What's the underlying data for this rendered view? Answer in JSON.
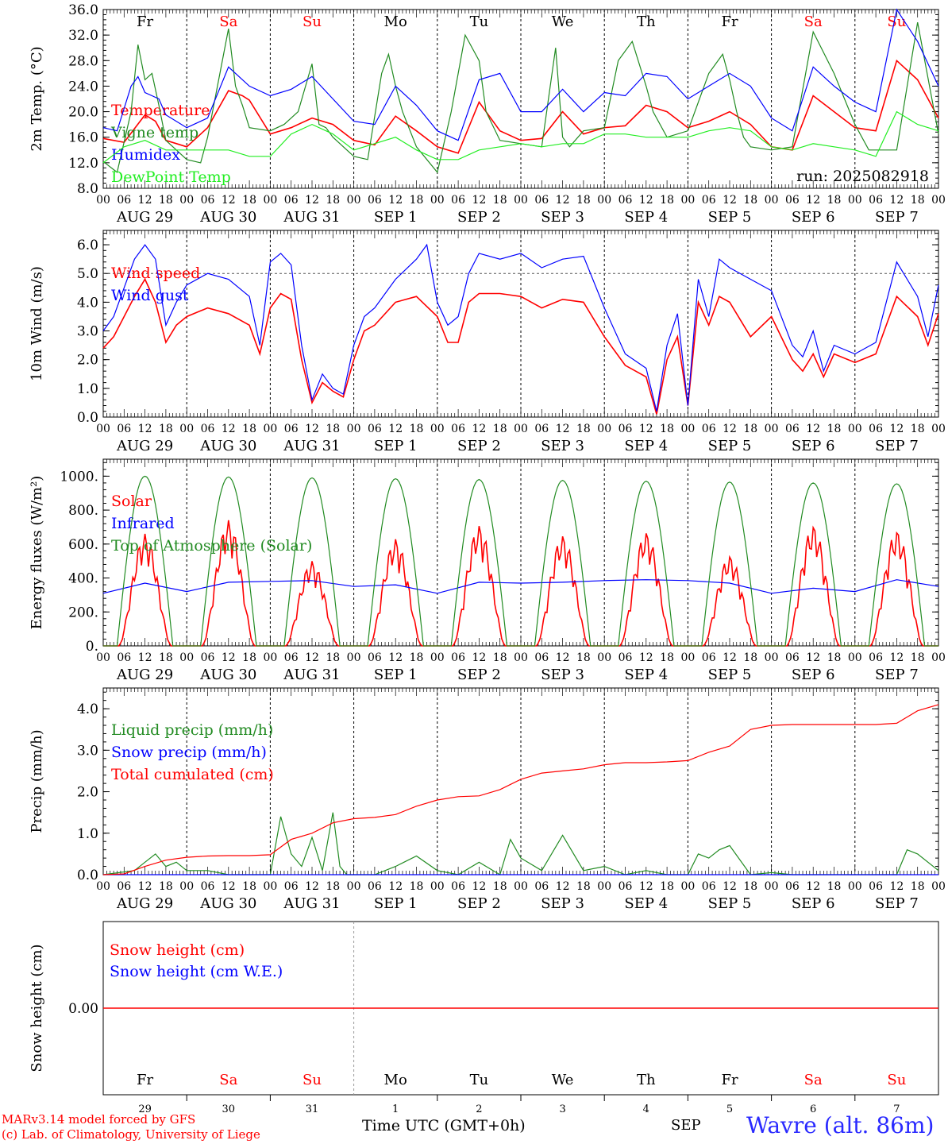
{
  "footer": {
    "credit_line1": "MARv3.14 model forced by GFS",
    "credit_line2": "(c) Lab. of Climatology, University of Liege",
    "xaxis_label": "Time UTC (GMT+0h)",
    "month_label": "SEP",
    "station": "Wavre (alt. 86m)"
  },
  "colors": {
    "red": "#ff0000",
    "green": "#228b22",
    "blue": "#0000ff",
    "lime": "#22ee22",
    "weekend": "#ff0000"
  },
  "days": [
    {
      "weekday": "Fr",
      "date": "AUG 29",
      "num": "29",
      "weekend": false
    },
    {
      "weekday": "Sa",
      "date": "AUG 30",
      "num": "30",
      "weekend": true
    },
    {
      "weekday": "Su",
      "date": "AUG 31",
      "num": "31",
      "weekend": true
    },
    {
      "weekday": "Mo",
      "date": "SEP  1",
      "num": "1",
      "weekend": false
    },
    {
      "weekday": "Tu",
      "date": "SEP  2",
      "num": "2",
      "weekend": false
    },
    {
      "weekday": "We",
      "date": "SEP  3",
      "num": "3",
      "weekend": false
    },
    {
      "weekday": "Th",
      "date": "SEP  4",
      "num": "4",
      "weekend": false
    },
    {
      "weekday": "Fr",
      "date": "SEP  5",
      "num": "5",
      "weekend": false
    },
    {
      "weekday": "Sa",
      "date": "SEP  6",
      "num": "6",
      "weekend": true
    },
    {
      "weekday": "Su",
      "date": "SEP  7",
      "num": "7",
      "weekend": true
    }
  ],
  "hour_labels": [
    "00",
    "06",
    "12",
    "18"
  ],
  "chart_data": [
    {
      "type": "line",
      "ylabel": "2m Temp. (°C)",
      "ylim": [
        8,
        36
      ],
      "yticks": [
        "8.0",
        "12.0",
        "16.0",
        "20.0",
        "24.0",
        "28.0",
        "32.0",
        "36.0"
      ],
      "x_unit": "hours since AUG 29 00 UTC",
      "annotation": "run: 2025082918",
      "show_weekdays": true,
      "series": [
        {
          "name": "Temperature",
          "color": "red",
          "x": [
            0,
            6,
            12,
            15,
            18,
            24,
            30,
            36,
            40,
            42,
            48,
            54,
            60,
            66,
            72,
            78,
            84,
            90,
            96,
            102,
            108,
            114,
            120,
            126,
            132,
            138,
            144,
            150,
            156,
            162,
            168,
            174,
            180,
            186,
            192,
            198,
            204,
            210,
            216,
            222,
            228,
            234,
            240
          ],
          "y": [
            15.8,
            15.2,
            19.5,
            18.5,
            15.5,
            14.5,
            17.5,
            23.3,
            22.5,
            21.8,
            16.5,
            17.5,
            19,
            18,
            15.5,
            14.8,
            19.3,
            17,
            14.5,
            13.5,
            21.5,
            17,
            15.5,
            15.8,
            20,
            16.5,
            17.5,
            17.8,
            21,
            20,
            17.5,
            18.5,
            20,
            18,
            14.5,
            14,
            22.5,
            20,
            17.5,
            17,
            28,
            25,
            19
          ]
        },
        {
          "name": "Vigne temp",
          "color": "green",
          "x": [
            0,
            4,
            8,
            10,
            12,
            14,
            16,
            18,
            24,
            28,
            30,
            36,
            38,
            40,
            42,
            48,
            52,
            56,
            60,
            62,
            64,
            66,
            72,
            76,
            80,
            82,
            84,
            86,
            90,
            96,
            100,
            104,
            108,
            110,
            114,
            120,
            126,
            130,
            132,
            134,
            138,
            144,
            148,
            152,
            156,
            158,
            162,
            168,
            174,
            178,
            180,
            182,
            184,
            186,
            192,
            198,
            204,
            210,
            216,
            220,
            228,
            234,
            240
          ],
          "y": [
            12.2,
            10.5,
            20,
            30.5,
            25,
            26,
            21,
            15.5,
            12.5,
            12,
            16,
            33,
            24,
            21,
            17.5,
            17,
            18,
            20,
            27.5,
            18,
            17.5,
            16,
            13,
            12.5,
            26,
            29,
            24,
            20,
            14.5,
            10.5,
            20,
            32,
            28,
            20,
            15.5,
            15,
            14.5,
            30,
            16,
            14.5,
            17,
            17.5,
            28,
            31,
            24,
            20,
            16,
            17,
            26,
            29,
            25,
            20,
            16,
            14.5,
            14,
            14.5,
            32.5,
            26,
            18,
            14,
            14,
            34,
            16.5
          ]
        },
        {
          "name": "Humidex",
          "color": "blue",
          "x": [
            0,
            4,
            8,
            10,
            12,
            14,
            16,
            18,
            24,
            30,
            36,
            42,
            48,
            54,
            60,
            66,
            72,
            78,
            84,
            90,
            96,
            102,
            108,
            114,
            120,
            126,
            132,
            138,
            144,
            150,
            156,
            162,
            168,
            174,
            180,
            186,
            192,
            198,
            204,
            210,
            216,
            222,
            228,
            234,
            240
          ],
          "y": [
            17.5,
            17,
            24,
            25.5,
            23,
            22.5,
            22,
            19.5,
            17.5,
            19,
            27,
            24,
            22.5,
            23.5,
            25.5,
            22,
            18.5,
            18,
            24,
            21,
            17,
            15.5,
            25,
            26,
            20,
            20,
            23.5,
            20,
            23,
            22.5,
            26,
            25.5,
            22,
            24,
            26,
            24,
            19,
            17,
            27,
            24,
            21.5,
            20,
            36,
            31,
            24
          ]
        },
        {
          "name": "DewPoint Temp",
          "color": "lime",
          "x": [
            0,
            6,
            12,
            18,
            24,
            30,
            36,
            42,
            48,
            54,
            60,
            66,
            72,
            78,
            84,
            90,
            96,
            102,
            108,
            114,
            120,
            126,
            132,
            138,
            144,
            150,
            156,
            162,
            168,
            174,
            180,
            186,
            192,
            198,
            204,
            210,
            216,
            222,
            228,
            234,
            240
          ],
          "y": [
            12,
            14.5,
            15.5,
            14,
            14,
            14,
            14,
            13,
            13,
            16.5,
            18,
            16.5,
            14,
            15,
            16,
            14,
            12.5,
            12.5,
            14,
            14.5,
            15,
            14.5,
            15,
            15,
            16.5,
            16.5,
            16,
            16,
            16,
            17,
            17.5,
            17,
            14.5,
            14,
            15,
            14.5,
            14,
            13,
            20,
            18,
            17
          ]
        }
      ]
    },
    {
      "type": "line",
      "ylabel": "10m Wind (m/s)",
      "ylim": [
        0,
        6.5
      ],
      "yticks": [
        "0.0",
        "1.0",
        "2.0",
        "3.0",
        "4.0",
        "5.0",
        "6.0"
      ],
      "reference_line": 5.0,
      "x_unit": "hours since AUG 29 00 UTC",
      "show_weekdays": false,
      "series": [
        {
          "name": "Wind speed",
          "color": "red",
          "x": [
            0,
            3,
            6,
            9,
            12,
            15,
            18,
            21,
            24,
            30,
            36,
            42,
            45,
            48,
            51,
            54,
            57,
            60,
            63,
            66,
            69,
            72,
            75,
            78,
            84,
            90,
            96,
            99,
            102,
            105,
            108,
            114,
            120,
            126,
            132,
            138,
            144,
            150,
            156,
            159,
            162,
            165,
            168,
            171,
            174,
            177,
            180,
            186,
            192,
            198,
            201,
            204,
            207,
            210,
            216,
            222,
            228,
            234,
            237,
            240
          ],
          "y": [
            2.4,
            2.8,
            3.5,
            4.2,
            4.8,
            4,
            2.6,
            3.2,
            3.5,
            3.8,
            3.6,
            3.2,
            2.2,
            3.8,
            4.3,
            4.1,
            2,
            0.5,
            1.2,
            0.9,
            0.7,
            2,
            3,
            3.2,
            4,
            4.2,
            3.5,
            2.6,
            2.6,
            4,
            4.3,
            4.3,
            4.2,
            3.8,
            4.1,
            4,
            2.8,
            1.8,
            1.4,
            0.1,
            2,
            2.8,
            0.4,
            4,
            3.2,
            4.2,
            4,
            2.8,
            3.5,
            2,
            1.6,
            2.2,
            1.4,
            2.2,
            1.9,
            2.2,
            4.2,
            3.5,
            2.5,
            3.6
          ]
        },
        {
          "name": "Wind gust",
          "color": "blue",
          "x": [
            0,
            3,
            6,
            9,
            12,
            15,
            18,
            21,
            24,
            30,
            36,
            42,
            45,
            48,
            51,
            54,
            57,
            60,
            63,
            66,
            69,
            72,
            75,
            78,
            84,
            90,
            93,
            96,
            99,
            102,
            105,
            108,
            114,
            120,
            126,
            132,
            138,
            144,
            150,
            156,
            159,
            162,
            165,
            168,
            171,
            174,
            177,
            180,
            186,
            192,
            198,
            201,
            204,
            207,
            210,
            216,
            222,
            228,
            234,
            237,
            240
          ],
          "y": [
            3,
            3.5,
            4.5,
            5.5,
            6,
            5.5,
            3.2,
            4,
            4.6,
            5,
            4.8,
            4.2,
            2.5,
            5.4,
            5.7,
            5.3,
            2.5,
            0.6,
            1.5,
            1,
            0.8,
            2.5,
            3.5,
            3.8,
            4.8,
            5.5,
            6,
            4,
            3.2,
            3.5,
            5,
            5.7,
            5.5,
            5.7,
            5.2,
            5.5,
            5.6,
            3.8,
            2.2,
            1.7,
            0.2,
            2.5,
            3.6,
            0.4,
            4.8,
            3.5,
            5.5,
            5.2,
            4.8,
            4.4,
            2.5,
            2.1,
            3,
            1.6,
            2.5,
            2.2,
            2.6,
            5.4,
            4.2,
            2.8,
            4.6
          ]
        }
      ]
    },
    {
      "type": "line",
      "ylabel": "Energy fluxes (W/m²)",
      "ylim": [
        0,
        1100
      ],
      "yticks": [
        "0.",
        "200.",
        "400.",
        "600.",
        "800.",
        "1000."
      ],
      "x_unit": "hours since AUG 29 00 UTC",
      "show_weekdays": false,
      "solar_daily_peaks": [
        660,
        740,
        500,
        630,
        710,
        650,
        670,
        530,
        710,
        680
      ],
      "toa_daily_peaks": [
        1000,
        995,
        990,
        985,
        980,
        975,
        970,
        965,
        960,
        955
      ],
      "series": [
        {
          "name": "Solar",
          "color": "red",
          "x": [],
          "y": []
        },
        {
          "name": "Infrared",
          "color": "blue",
          "x": [
            0,
            12,
            24,
            36,
            48,
            60,
            72,
            84,
            96,
            108,
            120,
            132,
            144,
            156,
            168,
            180,
            192,
            204,
            216,
            228,
            240
          ],
          "y": [
            310,
            370,
            320,
            375,
            380,
            385,
            350,
            360,
            310,
            375,
            370,
            375,
            385,
            390,
            385,
            370,
            310,
            340,
            320,
            390,
            350
          ]
        },
        {
          "name": "Top of Atmosphere (Solar)",
          "color": "green",
          "x": [],
          "y": []
        }
      ]
    },
    {
      "type": "line",
      "ylabel": "Precip (mm/h)",
      "ylim": [
        0,
        4.5
      ],
      "yticks": [
        "0.0",
        "1.0",
        "2.0",
        "3.0",
        "4.0"
      ],
      "x_unit": "hours since AUG 29 00 UTC",
      "show_weekdays": false,
      "series": [
        {
          "name": "Liquid precip (mm/h)",
          "color": "green",
          "x": [
            0,
            9,
            12,
            15,
            18,
            21,
            24,
            30,
            36,
            42,
            48,
            51,
            54,
            57,
            60,
            63,
            66,
            68,
            70,
            72,
            78,
            84,
            90,
            96,
            102,
            108,
            114,
            117,
            120,
            126,
            132,
            138,
            144,
            150,
            156,
            162,
            168,
            171,
            174,
            177,
            180,
            186,
            192,
            198,
            204,
            210,
            216,
            222,
            228,
            231,
            234,
            240
          ],
          "y": [
            0,
            0.1,
            0.3,
            0.5,
            0.2,
            0.3,
            0.1,
            0.1,
            0,
            0,
            0,
            1.4,
            0.5,
            0.2,
            0.9,
            0.1,
            1.5,
            0.2,
            0,
            0,
            0,
            0.2,
            0.45,
            0.1,
            0,
            0.3,
            0,
            0.85,
            0.4,
            0.1,
            0.95,
            0.1,
            0.2,
            0,
            0.1,
            0,
            0,
            0.5,
            0.4,
            0.6,
            0.7,
            0,
            0.05,
            0,
            0,
            0,
            0,
            0,
            0,
            0.6,
            0.5,
            0.1
          ]
        },
        {
          "name": "Snow precip (mm/h)",
          "color": "blue",
          "x": [
            0,
            240
          ],
          "y": [
            0,
            0
          ]
        },
        {
          "name": "Total cumulated (cm)",
          "color": "red",
          "x": [
            0,
            6,
            12,
            18,
            24,
            30,
            36,
            42,
            48,
            54,
            60,
            66,
            72,
            78,
            84,
            90,
            96,
            102,
            108,
            114,
            120,
            126,
            132,
            138,
            144,
            150,
            156,
            162,
            168,
            174,
            180,
            186,
            192,
            198,
            204,
            210,
            216,
            222,
            228,
            234,
            240
          ],
          "y": [
            0,
            0.02,
            0.2,
            0.35,
            0.42,
            0.45,
            0.46,
            0.46,
            0.48,
            0.85,
            1.0,
            1.25,
            1.35,
            1.38,
            1.45,
            1.65,
            1.8,
            1.88,
            1.9,
            2.05,
            2.3,
            2.45,
            2.5,
            2.55,
            2.65,
            2.7,
            2.7,
            2.72,
            2.75,
            2.95,
            3.1,
            3.5,
            3.6,
            3.62,
            3.62,
            3.62,
            3.62,
            3.62,
            3.65,
            3.95,
            4.1
          ]
        }
      ]
    },
    {
      "type": "line",
      "ylabel": "Snow height (cm)",
      "ylim": [
        -1,
        1
      ],
      "yticks": [
        "0.00"
      ],
      "x_unit": "hours since AUG 29 00 UTC",
      "show_weekdays": true,
      "series": [
        {
          "name": "Snow height (cm)",
          "color": "red",
          "x": [
            0,
            240
          ],
          "y": [
            0,
            0
          ]
        },
        {
          "name": "Snow height (cm W.E.)",
          "color": "blue",
          "x": [],
          "y": []
        }
      ]
    }
  ]
}
